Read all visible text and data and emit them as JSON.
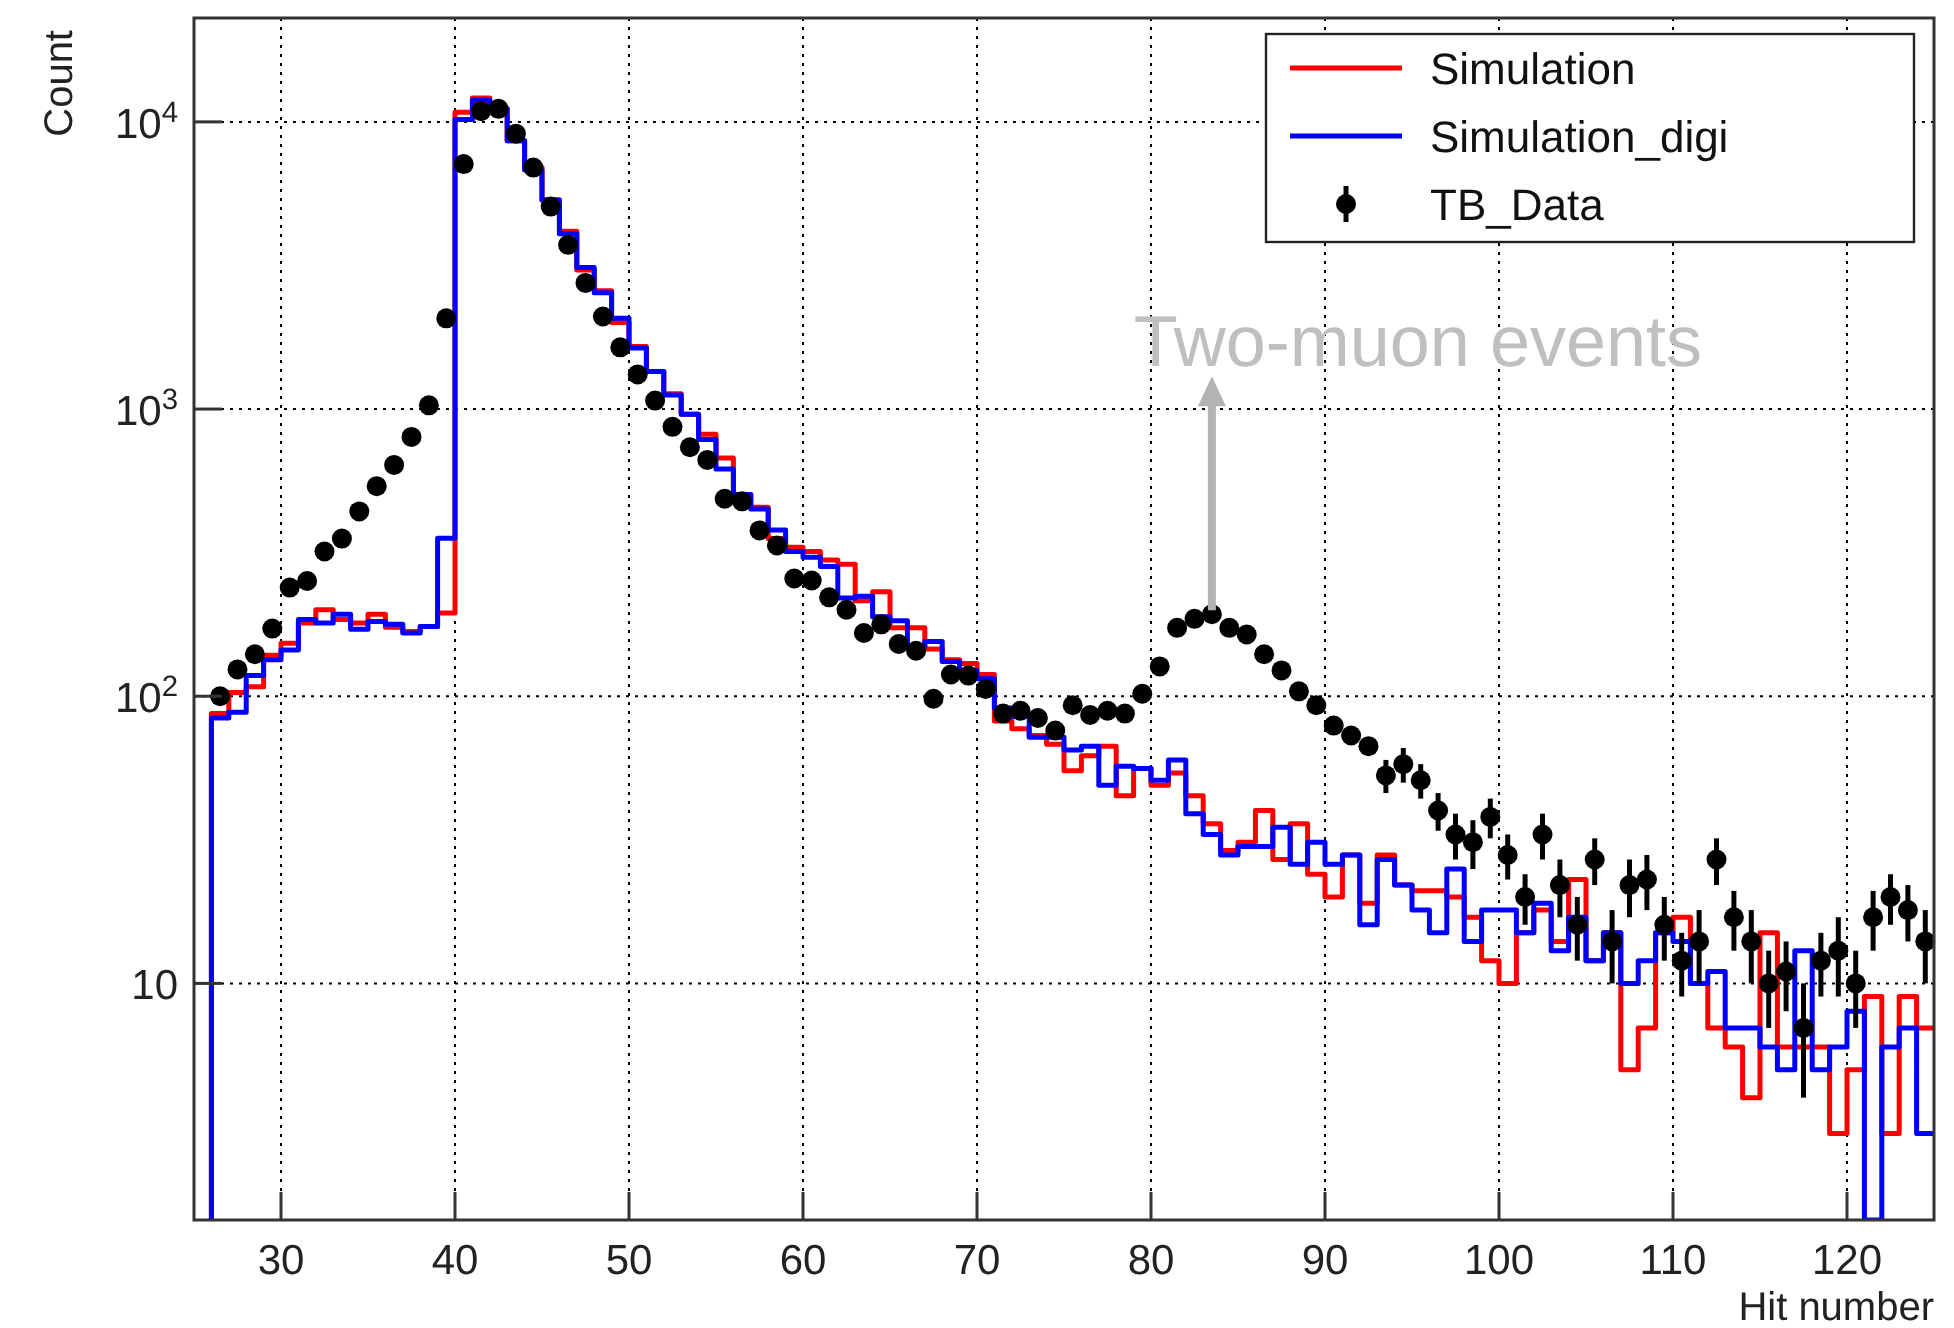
{
  "chart_data": {
    "type": "histogram",
    "xlabel": "Hit number",
    "ylabel": "Count",
    "bins": [
      26,
      27,
      28,
      29,
      30,
      31,
      32,
      33,
      34,
      35,
      36,
      37,
      38,
      39,
      40,
      41,
      42,
      43,
      44,
      45,
      46,
      47,
      48,
      49,
      50,
      51,
      52,
      53,
      54,
      55,
      56,
      57,
      58,
      59,
      60,
      61,
      62,
      63,
      64,
      65,
      66,
      67,
      68,
      69,
      70,
      71,
      72,
      73,
      74,
      75,
      76,
      77,
      78,
      79,
      80,
      81,
      82,
      83,
      84,
      85,
      86,
      87,
      88,
      89,
      90,
      91,
      92,
      93,
      94,
      95,
      96,
      97,
      98,
      99,
      100,
      101,
      102,
      103,
      104,
      105,
      106,
      107,
      108,
      109,
      110,
      111,
      112,
      113,
      114,
      115,
      116,
      117,
      118,
      119,
      120,
      121,
      122,
      123,
      124,
      125
    ],
    "series": [
      {
        "name": "Simulation",
        "color": "#ff0000",
        "values": [
          87,
          103,
          108,
          139,
          153,
          180,
          200,
          185,
          180,
          193,
          174,
          168,
          175,
          195,
          10800,
          12100,
          11100,
          8600,
          6930,
          5350,
          4160,
          3050,
          2580,
          2000,
          1650,
          1350,
          1130,
          960,
          817,
          675,
          504,
          455,
          354,
          330,
          319,
          298,
          288,
          215,
          231,
          173,
          173,
          146,
          134,
          130,
          119,
          82,
          77,
          73,
          68,
          55,
          62,
          67,
          45,
          56,
          49,
          54,
          45,
          36,
          29,
          31,
          40,
          27,
          36,
          24,
          20,
          28,
          19,
          28,
          22,
          21,
          21,
          20,
          17,
          12,
          10,
          15,
          18,
          14,
          23,
          12,
          15,
          5,
          7,
          15,
          17,
          10,
          7,
          6,
          4,
          15,
          6,
          6,
          6,
          3,
          5,
          9,
          3,
          9,
          7
        ]
      },
      {
        "name": "Simulation_digi",
        "color": "#0000ff",
        "values": [
          84,
          88,
          118,
          134,
          145,
          185,
          180,
          193,
          171,
          182,
          178,
          166,
          175,
          355,
          10200,
          11900,
          11100,
          8600,
          6800,
          5350,
          4080,
          3110,
          2540,
          2070,
          1630,
          1350,
          1120,
          960,
          783,
          618,
          504,
          449,
          379,
          319,
          305,
          283,
          220,
          223,
          189,
          183,
          149,
          155,
          132,
          123,
          115,
          91,
          85,
          72,
          72,
          65,
          67,
          49,
          57,
          56,
          51,
          60,
          39,
          33,
          28,
          30,
          30,
          35,
          26,
          31,
          26,
          28,
          16,
          27,
          22,
          18,
          15,
          25,
          14,
          18,
          18,
          15,
          19,
          13,
          17,
          12,
          15,
          10,
          12,
          15,
          14,
          10,
          11,
          7,
          7,
          6,
          5,
          13,
          5,
          6,
          8,
          null,
          6,
          7,
          3
        ]
      },
      {
        "name": "TB_Data",
        "type": "scatter",
        "color": "#000000",
        "marker": "circle",
        "x": [
          26.5,
          27.5,
          28.5,
          29.5,
          30.5,
          31.5,
          32.5,
          33.5,
          34.5,
          35.5,
          36.5,
          37.5,
          38.5,
          39.5,
          40.5,
          41.5,
          42.5,
          43.5,
          44.5,
          45.5,
          46.5,
          47.5,
          48.5,
          49.5,
          50.5,
          51.5,
          52.5,
          53.5,
          54.5,
          55.5,
          56.5,
          57.5,
          58.5,
          59.5,
          60.5,
          61.5,
          62.5,
          63.5,
          64.5,
          65.5,
          66.5,
          67.5,
          68.5,
          69.5,
          70.5,
          71.5,
          72.5,
          73.5,
          74.5,
          75.5,
          76.5,
          77.5,
          78.5,
          79.5,
          80.5,
          81.5,
          82.5,
          83.5,
          84.5,
          85.5,
          86.5,
          87.5,
          88.5,
          89.5,
          90.5,
          91.5,
          92.5,
          93.5,
          94.5,
          95.5,
          96.5,
          97.5,
          98.5,
          99.5,
          100.5,
          101.5,
          102.5,
          103.5,
          104.5,
          105.5,
          106.5,
          107.5,
          108.5,
          109.5,
          110.5,
          111.5,
          112.5,
          113.5,
          114.5,
          115.5,
          116.5,
          117.5,
          118.5,
          119.5,
          120.5,
          121.5,
          122.5,
          123.5,
          124.5
        ],
        "values": [
          100,
          124,
          140,
          172,
          239,
          252,
          319,
          354,
          440,
          539,
          639,
          800,
          1030,
          2070,
          7130,
          10900,
          11100,
          9100,
          6930,
          5070,
          3730,
          2750,
          2100,
          1640,
          1320,
          1070,
          867,
          736,
          665,
          487,
          477,
          378,
          335,
          257,
          253,
          221,
          200,
          166,
          178,
          152,
          144,
          98,
          119,
          118,
          106,
          87,
          89,
          84,
          76,
          93,
          86,
          89,
          87,
          102,
          127,
          173,
          186,
          193,
          173,
          164,
          140,
          123,
          104,
          93,
          79,
          73,
          67,
          53,
          58,
          51,
          40,
          33,
          31,
          38,
          28,
          20,
          33,
          22,
          16,
          27,
          14,
          22,
          23,
          16,
          12,
          14,
          27,
          17,
          14,
          10,
          11,
          7,
          12,
          13,
          10,
          17,
          20,
          18,
          14
        ],
        "errors": [
          null,
          null,
          null,
          null,
          null,
          null,
          null,
          null,
          null,
          null,
          null,
          null,
          null,
          null,
          null,
          null,
          null,
          null,
          null,
          null,
          null,
          null,
          null,
          null,
          null,
          null,
          null,
          null,
          null,
          null,
          null,
          null,
          null,
          null,
          null,
          null,
          null,
          null,
          null,
          null,
          null,
          null,
          null,
          null,
          null,
          null,
          null,
          null,
          null,
          null,
          null,
          null,
          null,
          null,
          null,
          null,
          null,
          null,
          null,
          null,
          null,
          null,
          null,
          null,
          null,
          null,
          null,
          7,
          8,
          7,
          6,
          6,
          6,
          6,
          5,
          4,
          6,
          5,
          4,
          5,
          4,
          5,
          5,
          4,
          3,
          4,
          5,
          4,
          4,
          3,
          3,
          3,
          3,
          4,
          3,
          4,
          4,
          4,
          4
        ]
      }
    ],
    "xlim": [
      25,
      125
    ],
    "xticks": [
      30,
      40,
      50,
      60,
      70,
      80,
      90,
      100,
      110,
      120
    ],
    "ylim": [
      1.5,
      23000
    ],
    "yticks": [
      {
        "value": 10,
        "label": "10"
      },
      {
        "value": 100,
        "label": "10$^{2}$"
      },
      {
        "value": 1000,
        "label": "10$^{3}$"
      },
      {
        "value": 10000,
        "label": "10$^{4}$"
      }
    ],
    "log": "y",
    "grid": true,
    "legend": "top right",
    "annotations": [
      {
        "text": "Two-muon events",
        "x": 83.5,
        "y": 193
      }
    ]
  }
}
